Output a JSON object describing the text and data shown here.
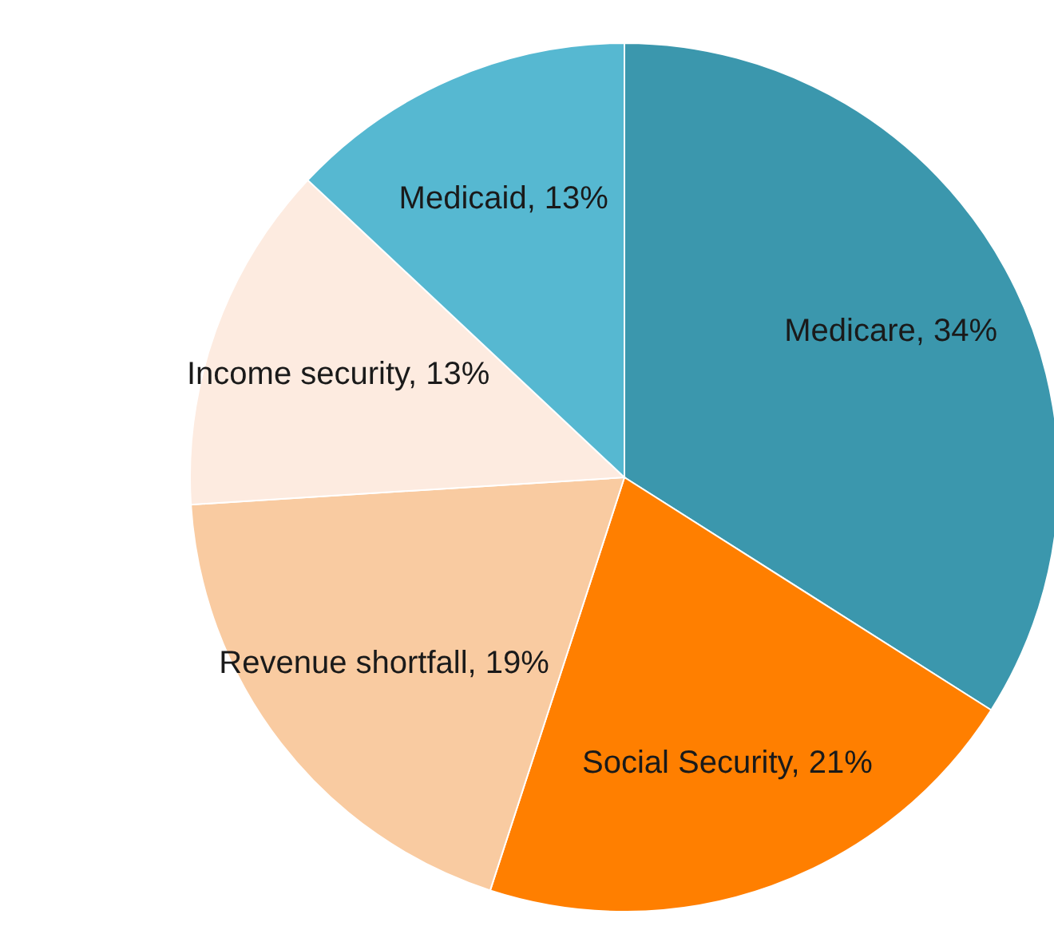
{
  "chart_data": {
    "type": "pie",
    "categories": [
      "Medicare",
      "Social Security",
      "Revenue shortfall",
      "Income security",
      "Medicaid"
    ],
    "values": [
      34,
      21,
      19,
      13,
      13
    ],
    "value_labels": [
      "34%",
      "21%",
      "19%",
      "13%",
      "13%"
    ],
    "colors": [
      "#3b97ad",
      "#ff7f00",
      "#f9cba1",
      "#fdebe0",
      "#56b8d1"
    ],
    "legend": false
  }
}
